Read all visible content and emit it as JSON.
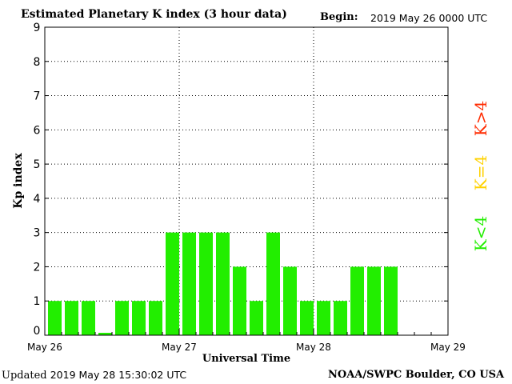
{
  "header": {
    "title": "Estimated Planetary K index (3 hour data)",
    "begin_label": "Begin:",
    "begin_value": "2019 May 26 0000 UTC"
  },
  "footer": {
    "updated_label": "Updated",
    "updated_value": "2019 May 28 15:30:02 UTC",
    "source": "NOAA/SWPC Boulder, CO USA"
  },
  "legend": {
    "items": [
      {
        "label": "K>4",
        "color": "#ff2a00"
      },
      {
        "label": "K=4",
        "color": "#ffd200"
      },
      {
        "label": "K<4",
        "color": "#22ee00"
      }
    ]
  },
  "chart_data": {
    "type": "bar",
    "xlabel": "Universal Time",
    "ylabel": "Kp index",
    "ylim": [
      0,
      9
    ],
    "y_ticks": [
      0,
      1,
      2,
      3,
      4,
      5,
      6,
      7,
      8,
      9
    ],
    "x_tick_labels": [
      "May 26",
      "May 27",
      "May 28",
      "May 29"
    ],
    "grid": "dotted",
    "bar_color": "#22ee00",
    "values": [
      1,
      1,
      1,
      0.07,
      1,
      1,
      1,
      3,
      3,
      3,
      3,
      2,
      1,
      3,
      2,
      1,
      1,
      1,
      2,
      2,
      2
    ]
  }
}
